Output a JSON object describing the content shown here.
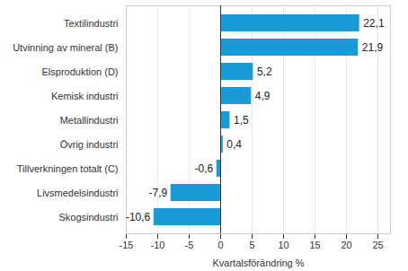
{
  "chart_data": {
    "type": "bar",
    "orientation": "horizontal",
    "categories": [
      "Textilindustri",
      "Utvinning av mineral (B)",
      "Elsproduktion (D)",
      "Kemisk industri",
      "Metallindustri",
      "Övrig industri",
      "Tillverkningen totalt (C)",
      "Livsmedelsindustri",
      "Skogsindustri"
    ],
    "values": [
      22.1,
      21.9,
      5.2,
      4.9,
      1.5,
      0.4,
      -0.6,
      -7.9,
      -10.6
    ],
    "value_labels": [
      "22,1",
      "21,9",
      "5,2",
      "4,9",
      "1,5",
      "0,4",
      "-0,6",
      "-7,9",
      "-10,6"
    ],
    "data_labels": true,
    "color": "#1a9bd7",
    "x_label": "Kvartalsförändring %",
    "xlim": [
      -15,
      27
    ],
    "xticks": [
      -15,
      -10,
      -5,
      0,
      5,
      10,
      15,
      20,
      25
    ],
    "grid": true
  }
}
